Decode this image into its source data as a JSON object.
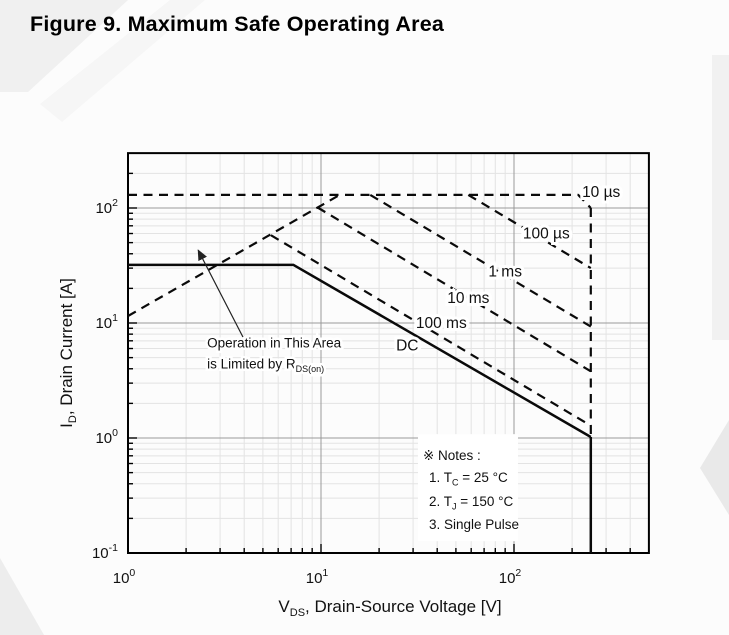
{
  "figure": {
    "title": "Figure 9. Maximum Safe Operating Area"
  },
  "chart_data": {
    "type": "line",
    "title": "Maximum Safe Operating Area",
    "xlabel": "V_DS, Drain-Source Voltage [V]",
    "ylabel": "I_D, Drain Current [A]",
    "xlabel_parts": {
      "sym": "V",
      "sub": "DS",
      "rest": ", Drain-Source Voltage [V]"
    },
    "ylabel_parts": {
      "sym": "I",
      "sub": "D",
      "rest": ", Drain Current [A]"
    },
    "x_scale": "log",
    "y_scale": "log",
    "xlim": [
      1,
      500
    ],
    "ylim": [
      0.1,
      300
    ],
    "grid": true,
    "x_tick_exponents": [
      0,
      1,
      2
    ],
    "y_tick_exponents": [
      2,
      1,
      0,
      -1
    ],
    "series": [
      {
        "name": "rds-on-limit",
        "label": "",
        "style": "dashed",
        "points": [
          [
            1,
            11.5
          ],
          [
            12.6,
            131
          ]
        ]
      },
      {
        "name": "10us",
        "label": "10 µs",
        "style": "dashed",
        "points": [
          [
            1,
            130
          ],
          [
            215,
            130
          ],
          [
            250,
            100
          ]
        ]
      },
      {
        "name": "vds-max-pulsed",
        "label": "",
        "style": "dashed",
        "points": [
          [
            250,
            100
          ],
          [
            250,
            1.02
          ]
        ]
      },
      {
        "name": "100us",
        "label": "100 µs",
        "style": "dashed",
        "points": [
          [
            58,
            130
          ],
          [
            250,
            30
          ]
        ]
      },
      {
        "name": "1ms",
        "label": "1 ms",
        "style": "dashed",
        "points": [
          [
            18,
            130
          ],
          [
            250,
            9.3
          ]
        ]
      },
      {
        "name": "10ms",
        "label": "10 ms",
        "style": "dashed",
        "points": [
          [
            9.6,
            101
          ],
          [
            250,
            3.8
          ]
        ]
      },
      {
        "name": "100ms",
        "label": "100 ms",
        "style": "dashed",
        "points": [
          [
            5.5,
            58
          ],
          [
            250,
            1.28
          ]
        ]
      },
      {
        "name": "dc",
        "label": "DC",
        "style": "solid",
        "points": [
          [
            1,
            32
          ],
          [
            7.2,
            32
          ],
          [
            250,
            1.02
          ]
        ]
      },
      {
        "name": "vds-max-dc",
        "label": "",
        "style": "solid",
        "points": [
          [
            250,
            1.02
          ],
          [
            250,
            0.1
          ]
        ]
      }
    ],
    "curve_labels": [
      {
        "text": "10 µs",
        "at": [
          283,
          138
        ]
      },
      {
        "text": "100 µs",
        "at": [
          147,
          60
        ]
      },
      {
        "text": "1 ms",
        "at": [
          90,
          28
        ]
      },
      {
        "text": "10 ms",
        "at": [
          58,
          16.5
        ]
      },
      {
        "text": "100 ms",
        "at": [
          42,
          10
        ]
      },
      {
        "text": "DC",
        "at": [
          28,
          6.4
        ]
      }
    ],
    "annotation": {
      "line1": "Operation in This Area",
      "line2_main": "is Limited by R",
      "line2_sub": "DS(on)",
      "text_at": [
        2.57,
        6.1
      ],
      "arrow_from": [
        3.94,
        7.55
      ],
      "arrow_to": [
        2.31,
        43
      ]
    },
    "notes": {
      "header": "※ Notes :",
      "items": [
        [
          {
            "t": "1. T"
          },
          {
            "sub": "C"
          },
          {
            "t": " = 25 °C"
          }
        ],
        [
          {
            "t": "2. T"
          },
          {
            "sub": "J"
          },
          {
            "t": " = 150 °C"
          }
        ],
        [
          {
            "t": "3. Single Pulse"
          }
        ]
      ],
      "at": [
        31.8,
        1.08
      ]
    }
  }
}
